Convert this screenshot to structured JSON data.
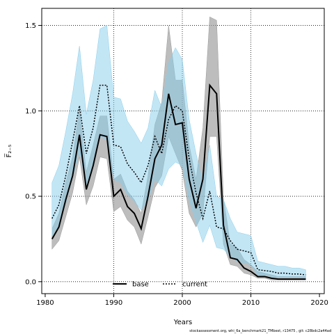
{
  "chart_data": {
    "type": "line",
    "title": "",
    "xlabel": "Years",
    "ylabel": "F̅₂₋₅",
    "xlim": [
      1979.5,
      2020.7
    ],
    "ylim": [
      -0.07,
      1.6
    ],
    "xticks": [
      1980,
      1990,
      2000,
      2010,
      2020
    ],
    "yticks": [
      0.0,
      0.5,
      1.0,
      1.5
    ],
    "xtick_labels": [
      "1980",
      "1990",
      "2000",
      "2010",
      "2020"
    ],
    "ytick_labels": [
      "0.0",
      "0.5",
      "1.0",
      "1.5"
    ],
    "vgrid": [
      1990,
      2000,
      2010
    ],
    "hgrid": [
      0.0,
      0.5,
      1.0,
      1.5
    ],
    "grid": true,
    "legend_position": "bottom-center",
    "footer": "stockassessment.org,  whi_6a_benchmark21_TMbest,  r13475 ,  git: c28bdc2a44ad",
    "x": [
      1981,
      1982,
      1983,
      1984,
      1985,
      1986,
      1987,
      1988,
      1989,
      1990,
      1991,
      1992,
      1993,
      1994,
      1995,
      1996,
      1997,
      1998,
      1999,
      2000,
      2001,
      2002,
      2003,
      2004,
      2005,
      2006,
      2007,
      2008,
      2009,
      2010,
      2011,
      2012,
      2013,
      2014,
      2015,
      2016,
      2017,
      2018
    ],
    "series": [
      {
        "name": "base",
        "color": "#000000",
        "band_color": "#999999",
        "line_style": "solid",
        "values": [
          0.25,
          0.32,
          0.48,
          0.62,
          0.86,
          0.54,
          0.68,
          0.86,
          0.85,
          0.5,
          0.54,
          0.44,
          0.4,
          0.31,
          0.5,
          0.72,
          0.8,
          1.1,
          0.92,
          0.93,
          0.6,
          0.43,
          0.6,
          1.15,
          1.1,
          0.33,
          0.14,
          0.13,
          0.08,
          0.06,
          0.03,
          0.03,
          0.02,
          0.015,
          0.015,
          0.015,
          0.015,
          0.015
        ],
        "lower": [
          0.19,
          0.24,
          0.38,
          0.52,
          0.73,
          0.45,
          0.56,
          0.73,
          0.72,
          0.41,
          0.44,
          0.36,
          0.32,
          0.22,
          0.38,
          0.55,
          0.62,
          0.85,
          0.75,
          0.65,
          0.4,
          0.32,
          0.4,
          0.85,
          0.85,
          0.22,
          0.1,
          0.09,
          0.05,
          0.04,
          0.02,
          0.02,
          0.01,
          0.01,
          0.01,
          0.01,
          0.01,
          0.01
        ],
        "upper": [
          0.31,
          0.4,
          0.58,
          0.73,
          1.01,
          0.64,
          0.8,
          0.97,
          0.97,
          0.6,
          0.63,
          0.53,
          0.48,
          0.4,
          0.62,
          0.92,
          1.05,
          1.5,
          1.18,
          1.18,
          0.8,
          0.6,
          0.9,
          1.55,
          1.53,
          0.49,
          0.22,
          0.2,
          0.13,
          0.1,
          0.06,
          0.05,
          0.04,
          0.03,
          0.03,
          0.03,
          0.03,
          0.03
        ]
      },
      {
        "name": "current",
        "color": "#000000",
        "band_color": "#87ceeb",
        "line_style": "dotted",
        "values": [
          0.37,
          0.45,
          0.62,
          0.82,
          1.03,
          0.75,
          0.9,
          1.15,
          1.15,
          0.8,
          0.79,
          0.69,
          0.64,
          0.58,
          0.68,
          0.85,
          0.75,
          0.95,
          1.03,
          1.0,
          0.72,
          0.52,
          0.37,
          0.53,
          0.32,
          0.31,
          0.24,
          0.19,
          0.18,
          0.17,
          0.07,
          0.065,
          0.06,
          0.05,
          0.05,
          0.045,
          0.045,
          0.04
        ],
        "lower": [
          0.27,
          0.33,
          0.46,
          0.61,
          0.77,
          0.57,
          0.68,
          0.85,
          0.83,
          0.6,
          0.58,
          0.51,
          0.47,
          0.42,
          0.48,
          0.6,
          0.56,
          0.66,
          0.7,
          0.68,
          0.48,
          0.35,
          0.23,
          0.33,
          0.2,
          0.19,
          0.15,
          0.12,
          0.11,
          0.1,
          0.04,
          0.04,
          0.03,
          0.03,
          0.03,
          0.025,
          0.025,
          0.02
        ],
        "upper": [
          0.58,
          0.68,
          0.88,
          1.1,
          1.38,
          0.98,
          1.18,
          1.48,
          1.5,
          1.08,
          1.07,
          0.94,
          0.88,
          0.81,
          0.9,
          1.12,
          1.02,
          1.28,
          1.37,
          1.3,
          0.95,
          0.75,
          0.58,
          0.8,
          0.5,
          0.48,
          0.37,
          0.29,
          0.28,
          0.27,
          0.12,
          0.11,
          0.1,
          0.09,
          0.09,
          0.08,
          0.08,
          0.07
        ]
      }
    ]
  }
}
